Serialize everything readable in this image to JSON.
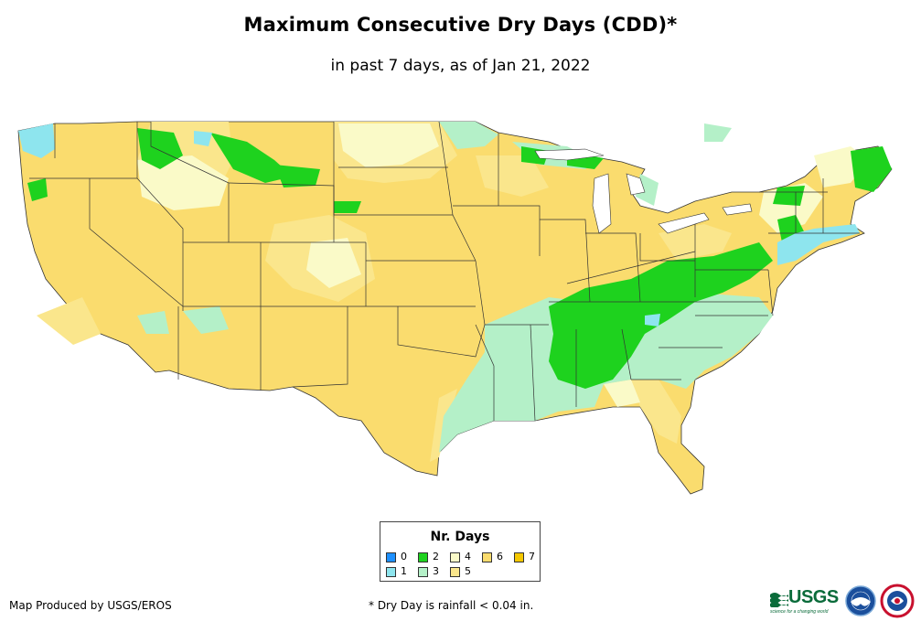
{
  "title": "Maximum Consecutive Dry Days (CDD)*",
  "subtitle": "in past 7 days, as of Jan 21, 2022",
  "legend": {
    "title": "Nr. Days",
    "items": [
      {
        "label": "0",
        "color": "#1e90ff"
      },
      {
        "label": "1",
        "color": "#8ee5ee"
      },
      {
        "label": "2",
        "color": "#1ed21e"
      },
      {
        "label": "3",
        "color": "#b4f0c8"
      },
      {
        "label": "4",
        "color": "#fafac8"
      },
      {
        "label": "5",
        "color": "#fae68c"
      },
      {
        "label": "6",
        "color": "#fadc6e"
      },
      {
        "label": "7",
        "color": "#f5c800"
      }
    ]
  },
  "footer": {
    "credit": "Map Produced by USGS/EROS",
    "footnote": "* Dry Day is rainfall < 0.04 in."
  },
  "logos": {
    "usgs": "USGS",
    "usgs_tagline": "science for a changing world"
  }
}
